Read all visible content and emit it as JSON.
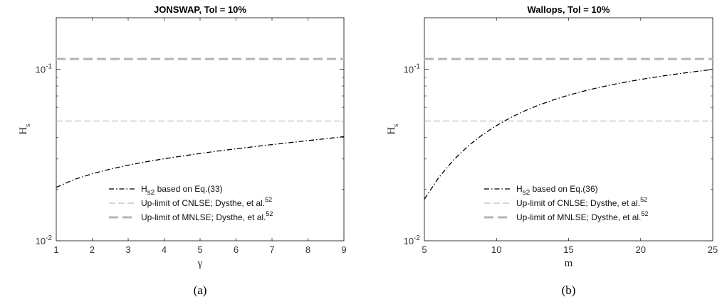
{
  "chart_data": [
    {
      "type": "line",
      "panel": "(a)",
      "title": "JONSWAP, Tol = 10%",
      "xlabel": "γ",
      "ylabel": "H_s",
      "ylabel_main": "H",
      "ylabel_sub": "s",
      "xlim": [
        1,
        9
      ],
      "xticks": [
        1,
        2,
        3,
        4,
        5,
        6,
        7,
        8,
        9
      ],
      "ylim": [
        0.01,
        0.2
      ],
      "yscale": "log",
      "yticks": [
        {
          "value": 0.01,
          "base": "10",
          "exp": "-2"
        },
        {
          "value": 0.1,
          "base": "10",
          "exp": "-1"
        }
      ],
      "grid": false,
      "legend_position": "bottom-right",
      "series": [
        {
          "name": "H_s2 based on Eq.(33)",
          "label_main": "H",
          "label_sub": "s2",
          "label_rest": " based on Eq.(33)",
          "style": "dashdot",
          "color": "#000000",
          "x": [
            1,
            1.5,
            2,
            2.5,
            3,
            3.5,
            4,
            4.5,
            5,
            5.5,
            6,
            6.5,
            7,
            7.5,
            8,
            8.5,
            9
          ],
          "y": [
            0.0205,
            0.0228,
            0.0246,
            0.0262,
            0.0276,
            0.0289,
            0.0301,
            0.0312,
            0.0323,
            0.0334,
            0.0344,
            0.0354,
            0.0364,
            0.0374,
            0.0384,
            0.0394,
            0.0405
          ]
        },
        {
          "name": "Up-limit of CNLSE; Dysthe, et al.52",
          "label_main": "Up-limit of CNLSE; Dysthe, et al.",
          "label_sup": "52",
          "style": "dashed-thin",
          "color": "#bdbdbd",
          "x": [
            1,
            9
          ],
          "y": [
            0.05,
            0.05
          ]
        },
        {
          "name": "Up-limit of MNLSE; Dysthe, et al.52",
          "label_main": "Up-limit of MNLSE; Dysthe, et al.",
          "label_sup": "52",
          "style": "dashed-thick",
          "color": "#b4b4b4",
          "x": [
            1,
            9
          ],
          "y": [
            0.115,
            0.115
          ]
        }
      ]
    },
    {
      "type": "line",
      "panel": "(b)",
      "title": "Wallops, Tol = 10%",
      "xlabel": "m",
      "ylabel": "H_s",
      "ylabel_main": "H",
      "ylabel_sub": "s",
      "xlim": [
        5,
        25
      ],
      "xticks": [
        5,
        10,
        15,
        20,
        25
      ],
      "ylim": [
        0.01,
        0.2
      ],
      "yscale": "log",
      "yticks": [
        {
          "value": 0.01,
          "base": "10",
          "exp": "-2"
        },
        {
          "value": 0.1,
          "base": "10",
          "exp": "-1"
        }
      ],
      "grid": false,
      "legend_position": "bottom-right",
      "series": [
        {
          "name": "H_s2 based on Eq.(36)",
          "label_main": "H",
          "label_sub": "s2",
          "label_rest": " based on Eq.(36)",
          "style": "dashdot",
          "color": "#000000",
          "x": [
            5,
            6,
            7,
            8,
            9,
            10,
            11,
            12,
            13,
            14,
            15,
            16,
            17,
            18,
            19,
            20,
            21,
            22,
            23,
            24,
            25
          ],
          "y": [
            0.0175,
            0.0234,
            0.0295,
            0.0355,
            0.0414,
            0.047,
            0.0524,
            0.0575,
            0.0622,
            0.0666,
            0.0707,
            0.0745,
            0.078,
            0.0813,
            0.0844,
            0.0873,
            0.0901,
            0.0927,
            0.0952,
            0.0976,
            0.0999
          ]
        },
        {
          "name": "Up-limit of CNLSE; Dysthe, et al.52",
          "label_main": "Up-limit of CNLSE; Dysthe, et al.",
          "label_sup": "52",
          "style": "dashed-thin",
          "color": "#bdbdbd",
          "x": [
            5,
            25
          ],
          "y": [
            0.05,
            0.05
          ]
        },
        {
          "name": "Up-limit of MNLSE; Dysthe, et al.52",
          "label_main": "Up-limit of MNLSE; Dysthe, et al.",
          "label_sup": "52",
          "style": "dashed-thick",
          "color": "#b4b4b4",
          "x": [
            5,
            25
          ],
          "y": [
            0.115,
            0.115
          ]
        }
      ]
    }
  ]
}
